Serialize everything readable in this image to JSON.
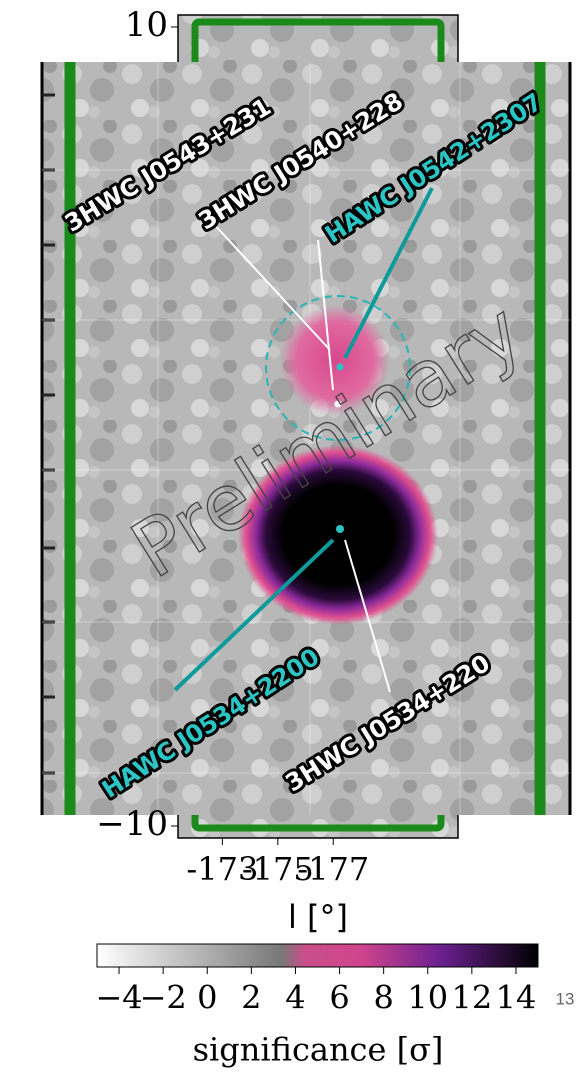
{
  "chart_data": {
    "type": "heatmap",
    "xlabel": "l [°]",
    "xlim": [
      -171.4,
      -181.5
    ],
    "xticks": [
      -173,
      -175,
      -177
    ],
    "ylim": [
      -10.3,
      10.3
    ],
    "yticks": [
      {
        "value": 10,
        "label": "10"
      },
      {
        "value": -10,
        "label": "−10"
      }
    ],
    "colorbar": {
      "label": "significance [σ]",
      "lim": [
        -5,
        15
      ],
      "ticks": [
        {
          "value": -4,
          "label": "−4"
        },
        {
          "value": -2,
          "label": "−2"
        },
        0,
        2,
        4,
        6,
        8,
        10,
        12,
        14
      ]
    },
    "annotations": [
      "3HWC J0543+231",
      "3HWC J0540+228",
      "HAWC J0542+2307",
      "HAWC J0534+2200",
      "3HWC J0534+220"
    ],
    "watermark": "Preliminary"
  },
  "page_number": "13"
}
